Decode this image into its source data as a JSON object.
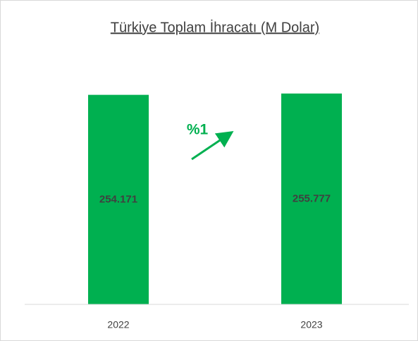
{
  "chart_data": {
    "type": "bar",
    "title": "Türkiye Toplam İhracatı (M Dolar)",
    "categories": [
      "2022",
      "2023"
    ],
    "values": [
      254171,
      255777
    ],
    "value_labels": [
      "254.171",
      "255.777"
    ],
    "color": "#00b050",
    "ylim": [
      0,
      300000
    ],
    "annotations": [
      "%1"
    ]
  }
}
